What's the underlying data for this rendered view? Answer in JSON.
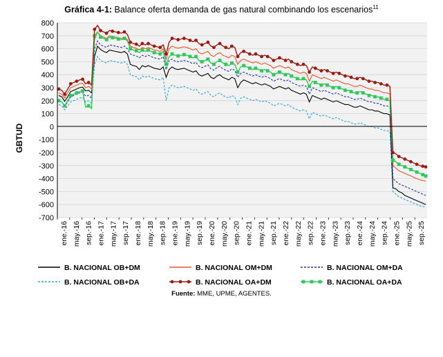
{
  "header": {
    "title_bold": "Gráfica 4-1:",
    "title_rest": " Balance oferta demanda de gas natural combinando los escenarios",
    "title_sup": "11"
  },
  "footer": {
    "source_bold": "Fuente:",
    "source_rest": " MME, UPME, AGENTES."
  },
  "chart_data": {
    "type": "line",
    "ylabel": "GBTUD",
    "ylim": [
      -700,
      800
    ],
    "yticks": [
      800,
      700,
      600,
      500,
      400,
      300,
      200,
      100,
      0,
      -100,
      -200,
      -300,
      -400,
      -500,
      -600,
      -700
    ],
    "grid": true,
    "legend_position": "bottom",
    "x_tick_labels": [
      "ene.-16",
      "may.-16",
      "sep.-16",
      "ene.-17",
      "may.-17",
      "sep.-17",
      "ene.-18",
      "may.-18",
      "sep.-18",
      "ene.-19",
      "may.-19",
      "sep.-19",
      "ene.-20",
      "may.-20",
      "sep.-20",
      "ene.-21",
      "may.-21",
      "sep.-21",
      "ene.-22",
      "may.-22",
      "sep.-22",
      "ene.-23",
      "may.-23",
      "sep.-23",
      "ene.-24",
      "may.-24",
      "sep.-24",
      "ene.-25",
      "may.-25",
      "sep.-25"
    ],
    "series": [
      {
        "name": "B. NACIONAL OB+DM",
        "color": "#000000",
        "style": "solid",
        "marker": "none",
        "values": [
          240,
          230,
          195,
          230,
          270,
          280,
          290,
          300,
          305,
          275,
          280,
          260,
          540,
          620,
          595,
          580,
          570,
          590,
          585,
          580,
          575,
          570,
          580,
          560,
          480,
          470,
          465,
          440,
          470,
          460,
          470,
          460,
          450,
          445,
          440,
          460,
          380,
          440,
          460,
          445,
          440,
          445,
          450,
          440,
          430,
          420,
          430,
          400,
          390,
          400,
          410,
          380,
          370,
          390,
          400,
          380,
          370,
          360,
          380,
          370,
          300,
          340,
          360,
          350,
          340,
          330,
          340,
          330,
          320,
          330,
          320,
          310,
          290,
          300,
          310,
          300,
          290,
          300,
          280,
          270,
          260,
          250,
          260,
          250,
          190,
          240,
          230,
          220,
          210,
          220,
          210,
          200,
          190,
          200,
          190,
          180,
          170,
          170,
          160,
          150,
          150,
          160,
          150,
          140,
          130,
          130,
          120,
          120,
          110,
          100,
          100,
          90,
          -470,
          -480,
          -500,
          -510,
          -530,
          -540,
          -550,
          -560,
          -570,
          -580,
          -590,
          -600
        ]
      },
      {
        "name": "B. NACIONAL OM+DM",
        "color": "#e8552b",
        "style": "solid",
        "marker": "none",
        "values": [
          260,
          250,
          220,
          260,
          300,
          310,
          320,
          330,
          335,
          300,
          310,
          290,
          670,
          730,
          700,
          690,
          680,
          700,
          695,
          690,
          685,
          680,
          690,
          670,
          620,
          610,
          605,
          590,
          610,
          600,
          610,
          600,
          590,
          585,
          580,
          600,
          520,
          600,
          620,
          610,
          605,
          610,
          615,
          610,
          600,
          590,
          600,
          570,
          560,
          570,
          580,
          550,
          540,
          560,
          570,
          550,
          540,
          530,
          550,
          540,
          480,
          510,
          520,
          510,
          500,
          490,
          500,
          490,
          480,
          490,
          480,
          470,
          450,
          460,
          470,
          460,
          450,
          460,
          440,
          430,
          420,
          410,
          420,
          410,
          350,
          400,
          390,
          380,
          370,
          380,
          370,
          360,
          350,
          360,
          350,
          340,
          330,
          330,
          320,
          310,
          310,
          320,
          310,
          300,
          290,
          290,
          280,
          280,
          270,
          260,
          260,
          250,
          -300,
          -320,
          -340,
          -350,
          -360,
          -370,
          -380,
          -390,
          -400,
          -410,
          -415,
          -420
        ]
      },
      {
        "name": "B. NACIONAL OM+DA",
        "color": "#1f2fa8",
        "style": "dashed",
        "marker": "none",
        "values": [
          200,
          190,
          160,
          190,
          230,
          240,
          250,
          260,
          265,
          235,
          240,
          220,
          600,
          660,
          630,
          620,
          610,
          630,
          625,
          620,
          615,
          610,
          620,
          600,
          560,
          550,
          545,
          530,
          550,
          540,
          550,
          540,
          530,
          525,
          520,
          540,
          440,
          510,
          520,
          505,
          500,
          505,
          510,
          505,
          495,
          485,
          495,
          465,
          455,
          465,
          475,
          445,
          435,
          455,
          465,
          445,
          435,
          425,
          445,
          435,
          380,
          410,
          420,
          410,
          400,
          390,
          400,
          390,
          380,
          390,
          380,
          370,
          350,
          360,
          370,
          360,
          350,
          360,
          340,
          330,
          320,
          310,
          320,
          310,
          250,
          300,
          290,
          280,
          270,
          280,
          270,
          260,
          250,
          260,
          250,
          240,
          230,
          230,
          220,
          210,
          210,
          220,
          210,
          200,
          190,
          190,
          180,
          180,
          170,
          160,
          160,
          150,
          -400,
          -420,
          -440,
          -450,
          -460,
          -470,
          -480,
          -490,
          -500,
          -510,
          -520,
          -530
        ]
      },
      {
        "name": "B. NACIONAL OB+DA",
        "color": "#2aa7d6",
        "style": "dashed",
        "marker": "none",
        "values": [
          170,
          160,
          130,
          160,
          190,
          200,
          210,
          220,
          225,
          190,
          200,
          180,
          480,
          540,
          510,
          500,
          490,
          510,
          505,
          500,
          495,
          490,
          500,
          480,
          400,
          390,
          385,
          360,
          390,
          380,
          390,
          380,
          370,
          365,
          360,
          380,
          200,
          300,
          320,
          310,
          300,
          305,
          310,
          300,
          290,
          280,
          290,
          260,
          250,
          260,
          270,
          240,
          230,
          250,
          260,
          240,
          230,
          220,
          240,
          230,
          170,
          220,
          230,
          220,
          210,
          200,
          210,
          200,
          190,
          200,
          190,
          180,
          160,
          170,
          180,
          170,
          160,
          170,
          150,
          140,
          130,
          120,
          130,
          120,
          60,
          110,
          100,
          90,
          80,
          90,
          80,
          70,
          60,
          70,
          60,
          50,
          40,
          40,
          30,
          20,
          20,
          30,
          20,
          10,
          0,
          0,
          -10,
          -10,
          -20,
          -30,
          -30,
          -40,
          -500,
          -520,
          -540,
          -550,
          -560,
          -570,
          -580,
          -590,
          -600,
          -610,
          -615,
          -620
        ]
      },
      {
        "name": "B. NACIONAL OA+DM",
        "color": "#9c1c12",
        "style": "solid",
        "marker": "circle",
        "values": [
          290,
          280,
          250,
          290,
          330,
          340,
          350,
          360,
          365,
          330,
          340,
          320,
          750,
          780,
          740,
          730,
          720,
          740,
          735,
          730,
          725,
          720,
          730,
          710,
          650,
          640,
          635,
          620,
          640,
          630,
          640,
          630,
          620,
          615,
          610,
          630,
          560,
          650,
          680,
          675,
          670,
          675,
          680,
          675,
          665,
          655,
          665,
          640,
          630,
          640,
          650,
          620,
          610,
          630,
          640,
          620,
          610,
          600,
          620,
          610,
          540,
          570,
          580,
          570,
          560,
          550,
          560,
          550,
          540,
          550,
          540,
          530,
          510,
          520,
          530,
          520,
          510,
          520,
          500,
          490,
          480,
          470,
          480,
          470,
          420,
          460,
          450,
          440,
          430,
          440,
          430,
          420,
          410,
          420,
          410,
          400,
          390,
          390,
          380,
          370,
          370,
          380,
          370,
          360,
          350,
          350,
          340,
          340,
          330,
          320,
          320,
          310,
          -200,
          -210,
          -230,
          -240,
          -250,
          -260,
          -270,
          -280,
          -290,
          -300,
          -305,
          -310
        ]
      },
      {
        "name": "B. NACIONAL OA+DA",
        "color": "#2ec95a",
        "style": "solid",
        "marker": "square",
        "values": [
          200,
          190,
          160,
          200,
          240,
          250,
          260,
          270,
          275,
          150,
          160,
          140,
          700,
          730,
          690,
          680,
          670,
          690,
          685,
          680,
          675,
          670,
          680,
          660,
          600,
          590,
          585,
          570,
          590,
          580,
          590,
          580,
          570,
          565,
          560,
          580,
          480,
          540,
          560,
          550,
          545,
          550,
          555,
          550,
          540,
          530,
          540,
          510,
          500,
          510,
          520,
          490,
          480,
          500,
          510,
          490,
          480,
          470,
          490,
          480,
          420,
          460,
          470,
          460,
          450,
          440,
          450,
          440,
          430,
          440,
          430,
          420,
          400,
          410,
          420,
          410,
          400,
          410,
          390,
          380,
          370,
          360,
          370,
          360,
          310,
          350,
          340,
          330,
          320,
          330,
          320,
          310,
          300,
          310,
          300,
          290,
          280,
          280,
          270,
          260,
          260,
          270,
          260,
          250,
          240,
          240,
          230,
          230,
          220,
          210,
          210,
          200,
          -260,
          -270,
          -290,
          -300,
          -310,
          -320,
          -330,
          -340,
          -350,
          -360,
          -370,
          -380
        ]
      }
    ]
  }
}
